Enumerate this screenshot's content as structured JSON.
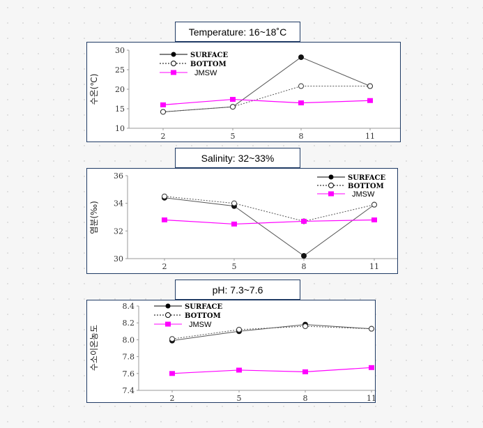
{
  "chart_data": [
    {
      "type": "line",
      "title": "Temperature: 16~18˚C",
      "ylabel": "수온(℃)",
      "categories": [
        "2",
        "5",
        "8",
        "11"
      ],
      "ylim": [
        10,
        30
      ],
      "yticks": [
        "10",
        "15",
        "20",
        "25",
        "30"
      ],
      "legend_position": "top-left",
      "series": [
        {
          "name": "SURFACE",
          "values": [
            14.2,
            15.5,
            28.2,
            20.8
          ],
          "color": "#555555",
          "style": "solid-filled-circle"
        },
        {
          "name": "BOTTOM",
          "values": [
            14.2,
            15.5,
            20.8,
            20.8
          ],
          "color": "#555555",
          "style": "dotted-open-circle"
        },
        {
          "name": "JMSW",
          "values": [
            16.0,
            17.4,
            16.5,
            17.1
          ],
          "color": "#ff00ff",
          "style": "magenta-square"
        }
      ]
    },
    {
      "type": "line",
      "title": "Salinity: 32~33%",
      "ylabel": "염분(‰)",
      "categories": [
        "2",
        "5",
        "8",
        "11"
      ],
      "ylim": [
        30,
        36
      ],
      "yticks": [
        "30",
        "32",
        "34",
        "36"
      ],
      "legend_position": "top-right",
      "series": [
        {
          "name": "SURFACE",
          "values": [
            34.4,
            33.8,
            30.2,
            33.9
          ],
          "color": "#555555",
          "style": "solid-filled-circle"
        },
        {
          "name": "BOTTOM",
          "values": [
            34.5,
            34.0,
            32.7,
            33.9
          ],
          "color": "#555555",
          "style": "dotted-open-circle"
        },
        {
          "name": "JMSW",
          "values": [
            32.8,
            32.5,
            32.7,
            32.8
          ],
          "color": "#ff00ff",
          "style": "magenta-square"
        }
      ]
    },
    {
      "type": "line",
      "title": "pH: 7.3~7.6",
      "ylabel": "수소이온농도",
      "categories": [
        "2",
        "5",
        "8",
        "11"
      ],
      "ylim": [
        7.4,
        8.4
      ],
      "yticks": [
        "7.4",
        "7.6",
        "7.8",
        "8.0",
        "8.2",
        "8.4"
      ],
      "legend_position": "top-left",
      "series": [
        {
          "name": "SURFACE",
          "values": [
            7.99,
            8.1,
            8.18,
            8.13
          ],
          "color": "#555555",
          "style": "solid-filled-circle"
        },
        {
          "name": "BOTTOM",
          "values": [
            8.01,
            8.12,
            8.16,
            8.13
          ],
          "color": "#555555",
          "style": "dotted-open-circle"
        },
        {
          "name": "JMSW",
          "values": [
            7.6,
            7.64,
            7.62,
            7.67
          ],
          "color": "#ff00ff",
          "style": "magenta-square"
        }
      ]
    }
  ]
}
